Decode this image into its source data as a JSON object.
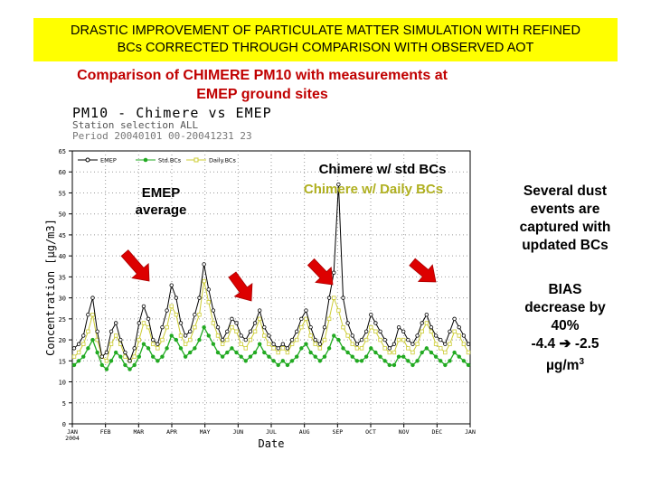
{
  "banner": {
    "line1": "DRASTIC IMPROVEMENT OF PARTICULATE MATTER SIMULATION WITH REFINED",
    "line2": "BCs CORRECTED THROUGH COMPARISON WITH OBSERVED AOT",
    "bg": "#ffff00"
  },
  "subtitle": {
    "line1": "Comparison of CHIMERE PM10 with measurements at",
    "line2": "EMEP ground sites",
    "color": "#c00000"
  },
  "plot_header": {
    "title": "PM10 - Chimere vs EMEP",
    "station": "Station selection ALL",
    "period": "Period 20040101 00-20041231 23"
  },
  "annotations": {
    "emep_line1": "EMEP",
    "emep_line2": "average",
    "std_bcs": "Chimere w/ std BCs",
    "daily_bcs": "Chimere w/ Daily BCs"
  },
  "side_text": {
    "dust_1": "Several dust",
    "dust_2": "events are",
    "dust_3": "captured with",
    "dust_4": "updated BCs",
    "bias_1": "BIAS",
    "bias_2": "decrease by",
    "bias_3": "40%",
    "bias_4a": "-4.4",
    "bias_arrow": "➔",
    "bias_4b": "-2.5",
    "bias_5": "µg/m",
    "bias_5_sup": "3"
  },
  "chart_data": {
    "type": "line",
    "title": "PM10 - Chimere vs EMEP",
    "xlabel": "Date",
    "ylabel": "Concentration [µg/m3]",
    "ylim": [
      0,
      65
    ],
    "yticks": [
      "0",
      "5",
      "10",
      "15",
      "20",
      "25",
      "30",
      "35",
      "40",
      "45",
      "50",
      "55",
      "60",
      "65"
    ],
    "xticks": [
      "JAN",
      "FEB",
      "MAR",
      "APR",
      "MAY",
      "JUN",
      "JUL",
      "AUG",
      "SEP",
      "OCT",
      "NOV",
      "DEC",
      "JAN"
    ],
    "xtick_sub": "2004",
    "legend": [
      "EMEP",
      "Std.BCs",
      "Daily.BCs"
    ],
    "colors": {
      "emep": "#000000",
      "std": "#22aa22",
      "daily": "#cccc33",
      "arrow": "#dd0000"
    },
    "series": [
      {
        "name": "EMEP",
        "values": [
          18,
          19,
          21,
          26,
          30,
          22,
          16,
          17,
          22,
          24,
          20,
          17,
          15,
          18,
          24,
          28,
          25,
          20,
          19,
          23,
          27,
          33,
          30,
          24,
          21,
          22,
          26,
          30,
          38,
          32,
          27,
          23,
          20,
          22,
          25,
          24,
          21,
          20,
          22,
          24,
          27,
          23,
          21,
          19,
          18,
          19,
          18,
          20,
          22,
          25,
          27,
          23,
          20,
          19,
          23,
          30,
          36,
          57,
          30,
          24,
          21,
          19,
          20,
          22,
          26,
          24,
          22,
          20,
          18,
          19,
          23,
          22,
          20,
          19,
          21,
          24,
          26,
          23,
          21,
          20,
          19,
          22,
          25,
          23,
          21,
          19
        ]
      },
      {
        "name": "Std.BCs",
        "values": [
          14,
          15,
          16,
          18,
          20,
          17,
          14,
          13,
          15,
          17,
          16,
          14,
          13,
          14,
          16,
          19,
          18,
          16,
          15,
          16,
          18,
          21,
          20,
          18,
          16,
          17,
          18,
          20,
          23,
          21,
          19,
          17,
          16,
          17,
          18,
          17,
          16,
          15,
          16,
          17,
          19,
          17,
          16,
          15,
          14,
          15,
          14,
          15,
          16,
          18,
          19,
          17,
          16,
          15,
          16,
          18,
          21,
          20,
          18,
          17,
          16,
          15,
          15,
          16,
          18,
          17,
          16,
          15,
          14,
          14,
          16,
          16,
          15,
          14,
          15,
          17,
          18,
          17,
          16,
          15,
          14,
          15,
          17,
          16,
          15,
          14
        ]
      },
      {
        "name": "Daily.BCs",
        "values": [
          16,
          17,
          19,
          22,
          26,
          20,
          16,
          15,
          19,
          21,
          19,
          16,
          15,
          16,
          20,
          24,
          23,
          19,
          18,
          20,
          23,
          28,
          26,
          21,
          19,
          20,
          23,
          26,
          34,
          29,
          24,
          21,
          19,
          20,
          23,
          22,
          19,
          18,
          20,
          22,
          25,
          21,
          19,
          18,
          17,
          18,
          17,
          19,
          20,
          23,
          25,
          21,
          19,
          18,
          20,
          25,
          30,
          27,
          23,
          21,
          19,
          18,
          18,
          20,
          23,
          22,
          20,
          18,
          17,
          17,
          20,
          20,
          18,
          17,
          19,
          22,
          24,
          22,
          19,
          18,
          17,
          19,
          22,
          21,
          19,
          17
        ]
      }
    ]
  }
}
